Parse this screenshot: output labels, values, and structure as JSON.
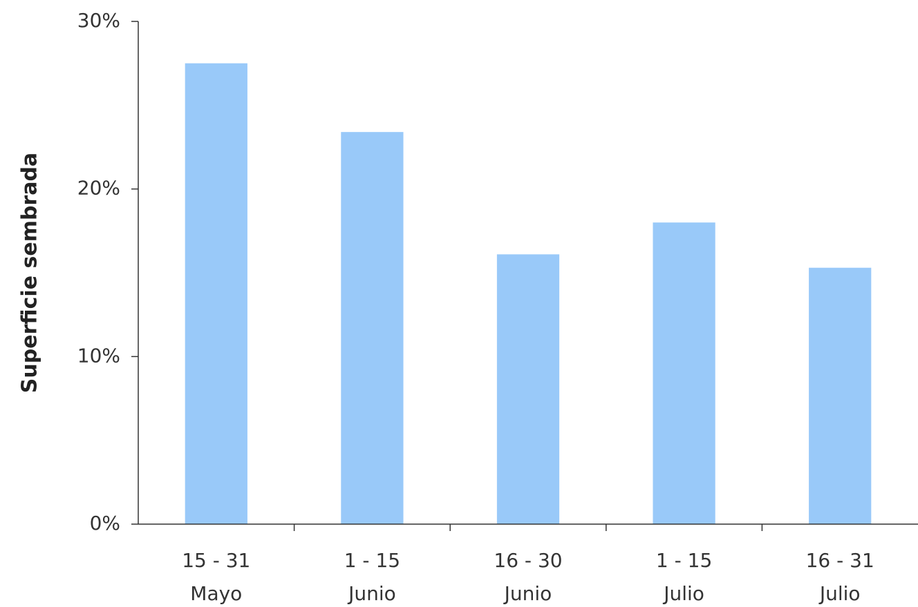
{
  "chart_data": {
    "type": "bar",
    "y_label": "Superficie sembrada",
    "categories": [
      [
        "15 - 31",
        "Mayo"
      ],
      [
        "1 - 15",
        "Junio"
      ],
      [
        "16 - 30",
        "Junio"
      ],
      [
        "1 - 15",
        "Julio"
      ],
      [
        "16 - 31",
        "Julio"
      ]
    ],
    "values": [
      27.5,
      23.4,
      16.1,
      18.0,
      15.3
    ],
    "color": "#99c9f9",
    "ylim": [
      0,
      30
    ],
    "yticks": [
      {
        "value": 0,
        "label": "0%"
      },
      {
        "value": 10,
        "label": "10%"
      },
      {
        "value": 20,
        "label": "20%"
      },
      {
        "value": 30,
        "label": "30%"
      }
    ]
  }
}
